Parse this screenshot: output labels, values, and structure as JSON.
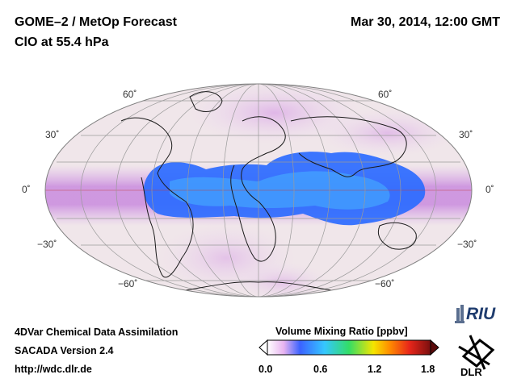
{
  "header": {
    "title_line1": "GOME–2 / MetOp Forecast",
    "title_line2": "ClO at 55.4 hPa",
    "datetime": "Mar 30, 2014, 12:00 GMT"
  },
  "map": {
    "projection": "Mollweide",
    "lat_labels": {
      "n60_left": "60˚",
      "n30_left": "30˚",
      "eq_left": "0˚",
      "s30_left": "−30˚",
      "s60_left": "−60˚",
      "n60_right": "60˚",
      "n30_right": "30˚",
      "eq_right": "0˚",
      "s30_right": "−30˚",
      "s60_right": "−60˚"
    },
    "colors": {
      "background_low": "#f1e6ec",
      "pink": "#e6b8ea",
      "violet": "#c98bde",
      "blue": "#1f6bff",
      "cyan": "#3aa8ff"
    }
  },
  "footer": {
    "line1": "4DVar Chemical Data Assimilation",
    "line2": "SACADA Version 2.4",
    "line3": "http://wdc.dlr.de"
  },
  "colorbar": {
    "title": "Volume Mixing Ratio [ppbv]",
    "ticks": [
      "0.0",
      "0.6",
      "1.2",
      "1.8"
    ],
    "stops": [
      "#ffffff",
      "#e8b4f0",
      "#3b62ff",
      "#35c7ff",
      "#33dd66",
      "#f5e500",
      "#ff8c00",
      "#e8261a",
      "#7a0f0f"
    ]
  },
  "logos": {
    "riu": "RIU",
    "dlr": "DLR"
  }
}
